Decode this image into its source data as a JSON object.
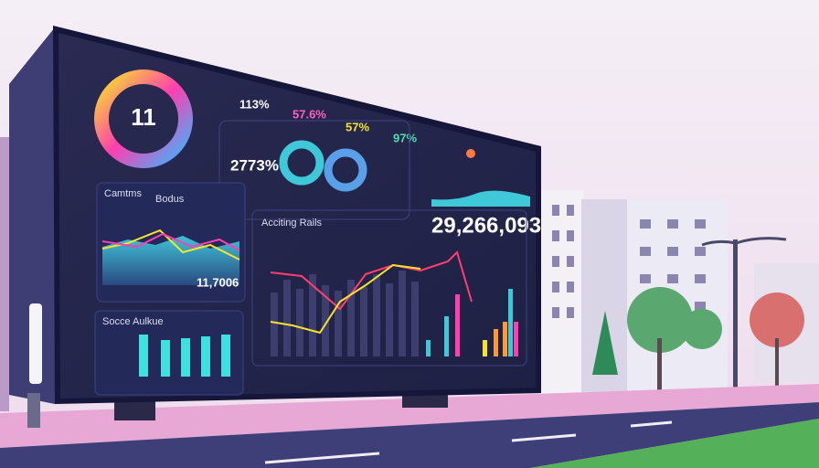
{
  "billboard": {
    "ring_value": "11",
    "kpis": [
      "113%",
      "57.6%",
      "57%",
      "97%"
    ],
    "left_value": "2773%",
    "big_number": "29,266,093",
    "panel_1_title": "Camtms",
    "panel_1_tag": "Bodus",
    "panel_1_value": "11,7006",
    "panel_2_title": "Socce Aulkue",
    "panel_3_title": "Acciting Rails"
  }
}
